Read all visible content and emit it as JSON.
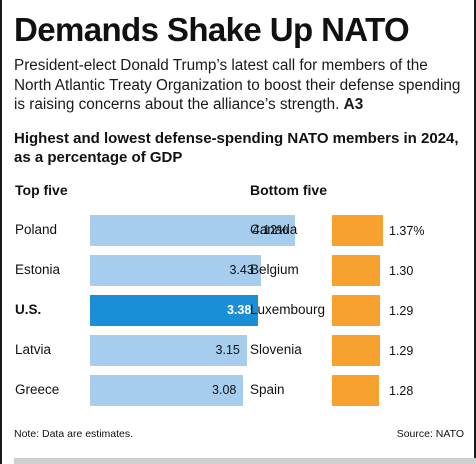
{
  "headline": "Demands Shake Up NATO",
  "dek": "President-elect Donald Trump’s latest call for members of the North Atlantic Treaty Organization to boost their defense spending is raising concerns about the alliance’s strength.",
  "dek_ref": "A3",
  "chart_data": {
    "type": "bar",
    "title": "Highest and lowest defense-spending NATO members in 2024, as a percentage of GDP",
    "groups": [
      {
        "name": "Top five",
        "categories": [
          "Poland",
          "Estonia",
          "U.S.",
          "Latvia",
          "Greece"
        ],
        "values": [
          4.12,
          3.43,
          3.38,
          3.15,
          3.08
        ],
        "labels": [
          "4.12%",
          "3.43",
          "3.38",
          "3.15",
          "3.08"
        ],
        "highlight": "U.S."
      },
      {
        "name": "Bottom five",
        "categories": [
          "Canada",
          "Belgium",
          "Luxembourg",
          "Slovenia",
          "Spain"
        ],
        "values": [
          1.37,
          1.3,
          1.29,
          1.29,
          1.28
        ],
        "labels": [
          "1.37%",
          "1.30",
          "1.29",
          "1.29",
          "1.28"
        ]
      }
    ],
    "colors": {
      "top": "#a7cdee",
      "highlight": "#1a8fd8",
      "bottom": "#f7a12f"
    },
    "note": "Note: Data are estimates.",
    "source": "Source: NATO"
  }
}
